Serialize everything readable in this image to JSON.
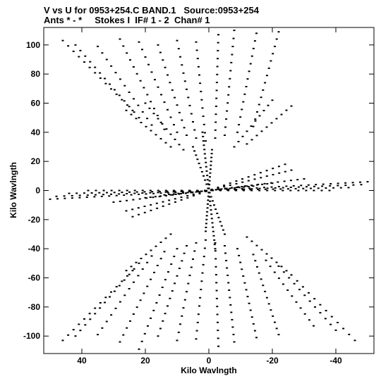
{
  "chart_data": {
    "type": "scatter",
    "title": "V vs U for 0953+254.C BAND.1   Source:0953+254",
    "subtitle": "Ants * - *     Stokes I  IF# 1 - 2  Chan# 1",
    "xlabel": "Kilo Wavlngth",
    "ylabel": "Kilo Wavlngth",
    "xlim": [
      52,
      -52
    ],
    "ylim": [
      -112,
      112
    ],
    "xticks": [
      40,
      20,
      0,
      -20,
      -40
    ],
    "xtick_labels": [
      "40",
      "20",
      "0",
      "-20",
      "-40"
    ],
    "yticks": [
      100,
      80,
      60,
      40,
      20,
      0,
      -20,
      -40,
      -60,
      -80,
      -100
    ],
    "ytick_labels": [
      "100",
      "80",
      "60",
      "40",
      "20",
      "0",
      "-20",
      "-40",
      "-60",
      "-80",
      "-100"
    ],
    "grid": false,
    "marker_color": "#000000",
    "series": [
      {
        "tracks": [
          {
            "u0": 46,
            "v0": 103,
            "u1": 24,
            "v1": 55,
            "n": 14
          },
          {
            "u0": 42,
            "v0": 100,
            "u1": 22,
            "v1": 50,
            "n": 14
          },
          {
            "u0": 35,
            "v0": 99,
            "u1": 18,
            "v1": 45,
            "n": 13
          },
          {
            "u0": 28,
            "v0": 104,
            "u1": 14,
            "v1": 42,
            "n": 14
          },
          {
            "u0": 22,
            "v0": 102,
            "u1": 10,
            "v1": 40,
            "n": 13
          },
          {
            "u0": 16,
            "v0": 100,
            "u1": 7,
            "v1": 38,
            "n": 13
          },
          {
            "u0": 10,
            "v0": 103,
            "u1": 4,
            "v1": 36,
            "n": 13
          },
          {
            "u0": 4,
            "v0": 102,
            "u1": 1,
            "v1": 34,
            "n": 13
          },
          {
            "u0": -3,
            "v0": 107,
            "u1": -2,
            "v1": 36,
            "n": 14
          },
          {
            "u0": -8,
            "v0": 110,
            "u1": -5,
            "v1": 38,
            "n": 14
          },
          {
            "u0": -15,
            "v0": 108,
            "u1": -9,
            "v1": 40,
            "n": 14
          },
          {
            "u0": -22,
            "v0": 109,
            "u1": -14,
            "v1": 44,
            "n": 14
          },
          {
            "u0": 26,
            "v0": 55,
            "u1": 12,
            "v1": 30,
            "n": 10
          },
          {
            "u0": 20,
            "v0": 60,
            "u1": 8,
            "v1": 28,
            "n": 10
          },
          {
            "u0": -20,
            "v0": 62,
            "u1": -8,
            "v1": 30,
            "n": 10
          },
          {
            "u0": -26,
            "v0": 58,
            "u1": -12,
            "v1": 32,
            "n": 10
          },
          {
            "u0": 46,
            "v0": -103,
            "u1": 24,
            "v1": -55,
            "n": 14
          },
          {
            "u0": 42,
            "v0": -100,
            "u1": 22,
            "v1": -50,
            "n": 14
          },
          {
            "u0": 35,
            "v0": -99,
            "u1": 18,
            "v1": -45,
            "n": 13
          },
          {
            "u0": 28,
            "v0": -104,
            "u1": 14,
            "v1": -42,
            "n": 14
          },
          {
            "u0": 22,
            "v0": -109,
            "u1": 10,
            "v1": -40,
            "n": 14
          },
          {
            "u0": 16,
            "v0": -100,
            "u1": 7,
            "v1": -38,
            "n": 13
          },
          {
            "u0": 10,
            "v0": -103,
            "u1": 4,
            "v1": -36,
            "n": 13
          },
          {
            "u0": 4,
            "v0": -102,
            "u1": 1,
            "v1": -34,
            "n": 13
          },
          {
            "u0": -3,
            "v0": -107,
            "u1": -2,
            "v1": -36,
            "n": 14
          },
          {
            "u0": -8,
            "v0": -104,
            "u1": -5,
            "v1": -38,
            "n": 14
          },
          {
            "u0": -15,
            "v0": -101,
            "u1": -9,
            "v1": -40,
            "n": 14
          },
          {
            "u0": -22,
            "v0": -99,
            "u1": -14,
            "v1": -44,
            "n": 14
          },
          {
            "u0": -33,
            "v0": -93,
            "u1": -18,
            "v1": -48,
            "n": 12
          },
          {
            "u0": -40,
            "v0": -96,
            "u1": -22,
            "v1": -52,
            "n": 12
          },
          {
            "u0": -46,
            "v0": -103,
            "u1": -26,
            "v1": -58,
            "n": 12
          },
          {
            "u0": 26,
            "v0": -55,
            "u1": 12,
            "v1": -30,
            "n": 10
          },
          {
            "u0": -26,
            "v0": -58,
            "u1": -12,
            "v1": -32,
            "n": 10
          },
          {
            "u0": 50,
            "v0": -6,
            "u1": -50,
            "v1": 6,
            "n": 44
          },
          {
            "u0": 48,
            "v0": -4,
            "u1": -48,
            "v1": 4,
            "n": 40
          },
          {
            "u0": 44,
            "v0": -2,
            "u1": -44,
            "v1": 2,
            "n": 38
          },
          {
            "u0": 38,
            "v0": 0,
            "u1": -38,
            "v1": 0,
            "n": 32
          },
          {
            "u0": 30,
            "v0": -8,
            "u1": -30,
            "v1": 8,
            "n": 30
          },
          {
            "u0": 26,
            "v0": -14,
            "u1": -26,
            "v1": 14,
            "n": 28
          },
          {
            "u0": 24,
            "v0": -18,
            "u1": -24,
            "v1": 18,
            "n": 26
          },
          {
            "u0": 20,
            "v0": -5,
            "u1": -20,
            "v1": 5,
            "n": 26
          },
          {
            "u0": 14,
            "v0": -3,
            "u1": -14,
            "v1": 3,
            "n": 20
          },
          {
            "u0": 2,
            "v0": 40,
            "u1": -2,
            "v1": -40,
            "n": 28
          },
          {
            "u0": 5,
            "v0": 30,
            "u1": -5,
            "v1": -30,
            "n": 22
          },
          {
            "u0": -1,
            "v0": 28,
            "u1": 1,
            "v1": -28,
            "n": 22
          }
        ]
      }
    ]
  }
}
